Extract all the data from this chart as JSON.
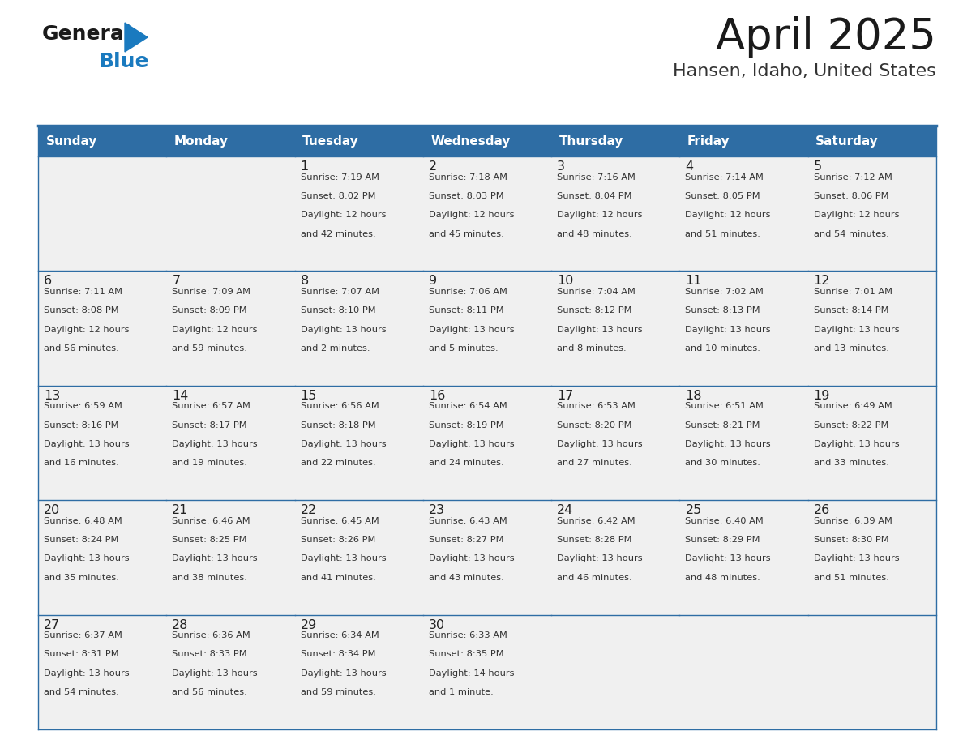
{
  "title": "April 2025",
  "subtitle": "Hansen, Idaho, United States",
  "header_bg": "#2E6DA4",
  "header_text_color": "#FFFFFF",
  "cell_bg": "#F0F0F0",
  "day_number_color": "#222222",
  "text_color": "#333333",
  "line_color": "#2E6DA4",
  "days_of_week": [
    "Sunday",
    "Monday",
    "Tuesday",
    "Wednesday",
    "Thursday",
    "Friday",
    "Saturday"
  ],
  "logo_general_color": "#1a1a1a",
  "logo_blue_color": "#1a7abf",
  "calendar_data": [
    [
      {
        "day": "",
        "sunrise": "",
        "sunset": "",
        "daylight": ""
      },
      {
        "day": "",
        "sunrise": "",
        "sunset": "",
        "daylight": ""
      },
      {
        "day": "1",
        "sunrise": "7:19 AM",
        "sunset": "8:02 PM",
        "daylight_h": "12 hours",
        "daylight_m": "and 42 minutes."
      },
      {
        "day": "2",
        "sunrise": "7:18 AM",
        "sunset": "8:03 PM",
        "daylight_h": "12 hours",
        "daylight_m": "and 45 minutes."
      },
      {
        "day": "3",
        "sunrise": "7:16 AM",
        "sunset": "8:04 PM",
        "daylight_h": "12 hours",
        "daylight_m": "and 48 minutes."
      },
      {
        "day": "4",
        "sunrise": "7:14 AM",
        "sunset": "8:05 PM",
        "daylight_h": "12 hours",
        "daylight_m": "and 51 minutes."
      },
      {
        "day": "5",
        "sunrise": "7:12 AM",
        "sunset": "8:06 PM",
        "daylight_h": "12 hours",
        "daylight_m": "and 54 minutes."
      }
    ],
    [
      {
        "day": "6",
        "sunrise": "7:11 AM",
        "sunset": "8:08 PM",
        "daylight_h": "12 hours",
        "daylight_m": "and 56 minutes."
      },
      {
        "day": "7",
        "sunrise": "7:09 AM",
        "sunset": "8:09 PM",
        "daylight_h": "12 hours",
        "daylight_m": "and 59 minutes."
      },
      {
        "day": "8",
        "sunrise": "7:07 AM",
        "sunset": "8:10 PM",
        "daylight_h": "13 hours",
        "daylight_m": "and 2 minutes."
      },
      {
        "day": "9",
        "sunrise": "7:06 AM",
        "sunset": "8:11 PM",
        "daylight_h": "13 hours",
        "daylight_m": "and 5 minutes."
      },
      {
        "day": "10",
        "sunrise": "7:04 AM",
        "sunset": "8:12 PM",
        "daylight_h": "13 hours",
        "daylight_m": "and 8 minutes."
      },
      {
        "day": "11",
        "sunrise": "7:02 AM",
        "sunset": "8:13 PM",
        "daylight_h": "13 hours",
        "daylight_m": "and 10 minutes."
      },
      {
        "day": "12",
        "sunrise": "7:01 AM",
        "sunset": "8:14 PM",
        "daylight_h": "13 hours",
        "daylight_m": "and 13 minutes."
      }
    ],
    [
      {
        "day": "13",
        "sunrise": "6:59 AM",
        "sunset": "8:16 PM",
        "daylight_h": "13 hours",
        "daylight_m": "and 16 minutes."
      },
      {
        "day": "14",
        "sunrise": "6:57 AM",
        "sunset": "8:17 PM",
        "daylight_h": "13 hours",
        "daylight_m": "and 19 minutes."
      },
      {
        "day": "15",
        "sunrise": "6:56 AM",
        "sunset": "8:18 PM",
        "daylight_h": "13 hours",
        "daylight_m": "and 22 minutes."
      },
      {
        "day": "16",
        "sunrise": "6:54 AM",
        "sunset": "8:19 PM",
        "daylight_h": "13 hours",
        "daylight_m": "and 24 minutes."
      },
      {
        "day": "17",
        "sunrise": "6:53 AM",
        "sunset": "8:20 PM",
        "daylight_h": "13 hours",
        "daylight_m": "and 27 minutes."
      },
      {
        "day": "18",
        "sunrise": "6:51 AM",
        "sunset": "8:21 PM",
        "daylight_h": "13 hours",
        "daylight_m": "and 30 minutes."
      },
      {
        "day": "19",
        "sunrise": "6:49 AM",
        "sunset": "8:22 PM",
        "daylight_h": "13 hours",
        "daylight_m": "and 33 minutes."
      }
    ],
    [
      {
        "day": "20",
        "sunrise": "6:48 AM",
        "sunset": "8:24 PM",
        "daylight_h": "13 hours",
        "daylight_m": "and 35 minutes."
      },
      {
        "day": "21",
        "sunrise": "6:46 AM",
        "sunset": "8:25 PM",
        "daylight_h": "13 hours",
        "daylight_m": "and 38 minutes."
      },
      {
        "day": "22",
        "sunrise": "6:45 AM",
        "sunset": "8:26 PM",
        "daylight_h": "13 hours",
        "daylight_m": "and 41 minutes."
      },
      {
        "day": "23",
        "sunrise": "6:43 AM",
        "sunset": "8:27 PM",
        "daylight_h": "13 hours",
        "daylight_m": "and 43 minutes."
      },
      {
        "day": "24",
        "sunrise": "6:42 AM",
        "sunset": "8:28 PM",
        "daylight_h": "13 hours",
        "daylight_m": "and 46 minutes."
      },
      {
        "day": "25",
        "sunrise": "6:40 AM",
        "sunset": "8:29 PM",
        "daylight_h": "13 hours",
        "daylight_m": "and 48 minutes."
      },
      {
        "day": "26",
        "sunrise": "6:39 AM",
        "sunset": "8:30 PM",
        "daylight_h": "13 hours",
        "daylight_m": "and 51 minutes."
      }
    ],
    [
      {
        "day": "27",
        "sunrise": "6:37 AM",
        "sunset": "8:31 PM",
        "daylight_h": "13 hours",
        "daylight_m": "and 54 minutes."
      },
      {
        "day": "28",
        "sunrise": "6:36 AM",
        "sunset": "8:33 PM",
        "daylight_h": "13 hours",
        "daylight_m": "and 56 minutes."
      },
      {
        "day": "29",
        "sunrise": "6:34 AM",
        "sunset": "8:34 PM",
        "daylight_h": "13 hours",
        "daylight_m": "and 59 minutes."
      },
      {
        "day": "30",
        "sunrise": "6:33 AM",
        "sunset": "8:35 PM",
        "daylight_h": "14 hours",
        "daylight_m": "and 1 minute."
      },
      {
        "day": "",
        "sunrise": "",
        "sunset": "",
        "daylight_h": "",
        "daylight_m": ""
      },
      {
        "day": "",
        "sunrise": "",
        "sunset": "",
        "daylight_h": "",
        "daylight_m": ""
      },
      {
        "day": "",
        "sunrise": "",
        "sunset": "",
        "daylight_h": "",
        "daylight_m": ""
      }
    ]
  ]
}
